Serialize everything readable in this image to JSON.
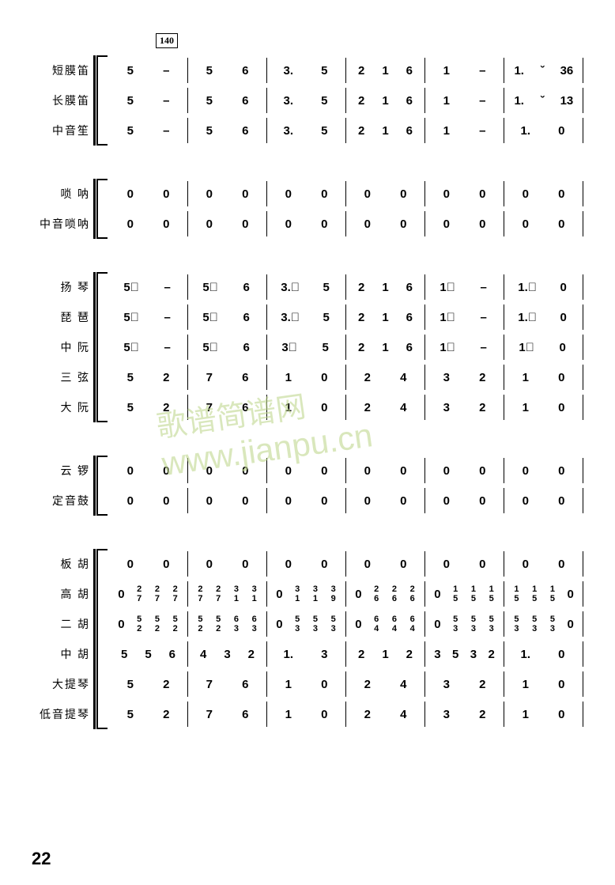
{
  "measure_number": "140",
  "page_number": "22",
  "watermark_cn": "歌谱简谱网",
  "watermark_url": "www.jianpu.cn",
  "groups": [
    {
      "instruments": [
        {
          "name": "短膜笛",
          "measures": [
            [
              "5",
              "–",
              "5",
              "6"
            ],
            [
              "3.",
              "5",
              "2",
              "1 6"
            ],
            [
              "1",
              "–",
              "1.",
              "ˇ 36"
            ]
          ]
        },
        {
          "name": "长膜笛",
          "measures": [
            [
              "5",
              "–",
              "5",
              "6"
            ],
            [
              "3.",
              "5",
              "2",
              "1 6"
            ],
            [
              "1",
              "–",
              "1.",
              "ˇ 13"
            ]
          ]
        },
        {
          "name": "中音笙",
          "measures": [
            [
              "5",
              "–",
              "5",
              "6"
            ],
            [
              "3.",
              "5",
              "2",
              "1 6"
            ],
            [
              "1",
              "–",
              "1.",
              "0"
            ]
          ]
        }
      ]
    },
    {
      "instruments": [
        {
          "name": "唢 呐",
          "measures": [
            [
              "0",
              "0",
              "0",
              "0"
            ],
            [
              "0",
              "0",
              "0",
              "0"
            ],
            [
              "0",
              "0",
              "0",
              "0"
            ]
          ]
        },
        {
          "name": "中音唢呐",
          "measures": [
            [
              "0",
              "0",
              "0",
              "0"
            ],
            [
              "0",
              "0",
              "0",
              "0"
            ],
            [
              "0",
              "0",
              "0",
              "0"
            ]
          ]
        }
      ]
    },
    {
      "instruments": [
        {
          "name": "扬 琴",
          "measures": [
            [
              "5𝆪",
              "–",
              "5𝆪",
              "6"
            ],
            [
              "3.𝆪",
              "5",
              "2",
              "1 6"
            ],
            [
              "1𝆪",
              "–",
              "1.𝆪",
              "0"
            ]
          ]
        },
        {
          "name": "琵 琶",
          "measures": [
            [
              "5𝆪",
              "–",
              "5𝆪",
              "6"
            ],
            [
              "3.𝆪",
              "5",
              "2",
              "1 6"
            ],
            [
              "1𝆪",
              "–",
              "1.𝆪",
              "0"
            ]
          ]
        },
        {
          "name": "中 阮",
          "measures": [
            [
              "5𝆪",
              "–",
              "5𝆪",
              "6"
            ],
            [
              "3𝆪",
              "5",
              "2",
              "1 6"
            ],
            [
              "1𝆪",
              "–",
              "1𝆪",
              "0"
            ]
          ]
        },
        {
          "name": "三 弦",
          "measures": [
            [
              "5",
              "2",
              "7",
              "6"
            ],
            [
              "1",
              "0",
              "2",
              "4"
            ],
            [
              "3",
              "2",
              "1",
              "0"
            ]
          ]
        },
        {
          "name": "大 阮",
          "measures": [
            [
              "5",
              "2",
              "7",
              "6"
            ],
            [
              "1",
              "0",
              "2",
              "4"
            ],
            [
              "3",
              "2",
              "1",
              "0"
            ]
          ]
        }
      ]
    },
    {
      "instruments": [
        {
          "name": "云 锣",
          "measures": [
            [
              "0",
              "0",
              "0",
              "0"
            ],
            [
              "0",
              "0",
              "0",
              "0"
            ],
            [
              "0",
              "0",
              "0",
              "0"
            ]
          ]
        },
        {
          "name": "定音鼓",
          "measures": [
            [
              "0",
              "0",
              "0",
              "0"
            ],
            [
              "0",
              "0",
              "0",
              "0"
            ],
            [
              "0",
              "0",
              "0",
              "0"
            ]
          ]
        }
      ]
    },
    {
      "instruments": [
        {
          "name": "板 胡",
          "measures": [
            [
              "0",
              "0",
              "0",
              "0"
            ],
            [
              "0",
              "0",
              "0",
              "0"
            ],
            [
              "0",
              "0",
              "0",
              "0"
            ]
          ]
        },
        {
          "name": "高 胡",
          "measures": [
            [
              "0 2/7",
              "2/7 2/7",
              "2/7 2/7",
              "3/1 3/1"
            ],
            [
              "0 3/1",
              "3/1 3/9",
              "0 2/6",
              "2/6 2/6"
            ],
            [
              "0 1/5",
              "1/5 1/5",
              "1/5 1/5",
              "1/5 0"
            ]
          ]
        },
        {
          "name": "二 胡",
          "measures": [
            [
              "0 5/2",
              "5/2 5/2",
              "5/2 5/2",
              "6/3 6/3"
            ],
            [
              "0 5/3",
              "5/3 5/3",
              "0 6/4",
              "6/4 6/4"
            ],
            [
              "0 5/3",
              "5/3 5/3",
              "5/3 5/3",
              "5/3 0"
            ]
          ]
        },
        {
          "name": "中 胡",
          "measures": [
            [
              "5 5",
              "6",
              "4",
              "3 2"
            ],
            [
              "1.",
              "3",
              "2",
              "1 2"
            ],
            [
              "3 5",
              "3 2",
              "1.",
              "0"
            ]
          ]
        },
        {
          "name": "大提琴",
          "measures": [
            [
              "5",
              "2",
              "7",
              "6"
            ],
            [
              "1",
              "0",
              "2",
              "4"
            ],
            [
              "3",
              "2",
              "1",
              "0"
            ]
          ]
        },
        {
          "name": "低音提琴",
          "measures": [
            [
              "5",
              "2",
              "7",
              "6"
            ],
            [
              "1",
              "0",
              "2",
              "4"
            ],
            [
              "3",
              "2",
              "1",
              "0"
            ]
          ]
        }
      ]
    }
  ]
}
